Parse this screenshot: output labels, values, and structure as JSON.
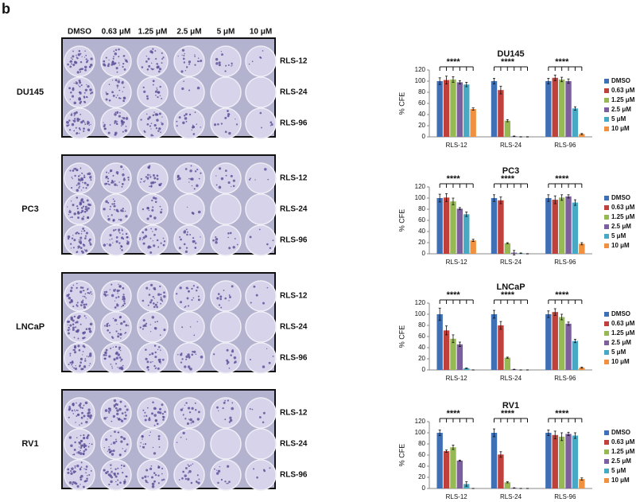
{
  "panel_label": "b",
  "plates": {
    "column_headers": [
      "DMSO",
      "0.63 μM",
      "1.25 μM",
      "2.5 μM",
      "5 μM",
      "10 μM"
    ],
    "groups": [
      {
        "name": "DU145",
        "rows": [
          "RLS-12",
          "RLS-24",
          "RLS-96"
        ]
      },
      {
        "name": "PC3",
        "rows": [
          "RLS-12",
          "RLS-24",
          "RLS-96"
        ]
      },
      {
        "name": "LNCaP",
        "rows": [
          "RLS-12",
          "RLS-24",
          "RLS-96"
        ]
      },
      {
        "name": "RV1",
        "rows": [
          "RLS-12",
          "RLS-24",
          "RLS-96"
        ]
      }
    ]
  },
  "chart_data": [
    {
      "type": "bar",
      "title": "DU145",
      "y_label": "% CFE",
      "categories": [
        "RLS-12",
        "RLS-24",
        "RLS-96"
      ],
      "ylim": [
        0,
        120
      ],
      "yticks": [
        0,
        20,
        40,
        60,
        80,
        100,
        120
      ],
      "annotations": [
        "****",
        "****",
        "****"
      ],
      "series": [
        {
          "name": "DMSO",
          "color": "#3f6fb5",
          "values": [
            100,
            100,
            100
          ],
          "errors": [
            6,
            5,
            5
          ]
        },
        {
          "name": "0.63 μM",
          "color": "#c0403c",
          "values": [
            102,
            84,
            106
          ],
          "errors": [
            7,
            7,
            5
          ]
        },
        {
          "name": "1.25 μM",
          "color": "#97b954",
          "values": [
            103,
            29,
            103
          ],
          "errors": [
            5,
            2,
            4
          ]
        },
        {
          "name": "2.5 μM",
          "color": "#7d5fa0",
          "values": [
            98,
            1,
            100
          ],
          "errors": [
            3,
            0.5,
            4
          ]
        },
        {
          "name": "5 μM",
          "color": "#47a9c4",
          "values": [
            94,
            0,
            51
          ],
          "errors": [
            4,
            0.3,
            3
          ]
        },
        {
          "name": "10 μM",
          "color": "#f1913f",
          "values": [
            50,
            0,
            5
          ],
          "errors": [
            2,
            0.3,
            1
          ]
        }
      ]
    },
    {
      "type": "bar",
      "title": "PC3",
      "y_label": "% CFE",
      "categories": [
        "RLS-12",
        "RLS-24",
        "RLS-96"
      ],
      "ylim": [
        0,
        120
      ],
      "yticks": [
        0,
        20,
        40,
        60,
        80,
        100,
        120
      ],
      "annotations": [
        "****",
        "****",
        "****"
      ],
      "series": [
        {
          "name": "DMSO",
          "color": "#3f6fb5",
          "values": [
            100,
            100,
            100
          ],
          "errors": [
            7,
            6,
            6
          ]
        },
        {
          "name": "0.63 μM",
          "color": "#c0403c",
          "values": [
            101,
            96,
            97
          ],
          "errors": [
            7,
            6,
            7
          ]
        },
        {
          "name": "1.25 μM",
          "color": "#97b954",
          "values": [
            94,
            19,
            101
          ],
          "errors": [
            6,
            1,
            5
          ]
        },
        {
          "name": "2.5 μM",
          "color": "#7d5fa0",
          "values": [
            81,
            2,
            103
          ],
          "errors": [
            2,
            4,
            3
          ]
        },
        {
          "name": "5 μM",
          "color": "#47a9c4",
          "values": [
            71,
            1,
            92
          ],
          "errors": [
            4,
            0.5,
            5
          ]
        },
        {
          "name": "10 μM",
          "color": "#f1913f",
          "values": [
            24,
            0,
            18
          ],
          "errors": [
            2,
            0.3,
            2
          ]
        }
      ]
    },
    {
      "type": "bar",
      "title": "LNCaP",
      "y_label": "% CFE",
      "categories": [
        "RLS-12",
        "RLS-24",
        "RLS-96"
      ],
      "ylim": [
        0,
        120
      ],
      "yticks": [
        0,
        20,
        40,
        60,
        80,
        100,
        120
      ],
      "annotations": [
        "****",
        "****",
        "****"
      ],
      "series": [
        {
          "name": "DMSO",
          "color": "#3f6fb5",
          "values": [
            100,
            100,
            100
          ],
          "errors": [
            11,
            7,
            6
          ]
        },
        {
          "name": "0.63 μM",
          "color": "#c0403c",
          "values": [
            71,
            80,
            104
          ],
          "errors": [
            8,
            7,
            6
          ]
        },
        {
          "name": "1.25 μM",
          "color": "#97b954",
          "values": [
            56,
            22,
            95
          ],
          "errors": [
            7,
            1,
            5
          ]
        },
        {
          "name": "2.5 μM",
          "color": "#7d5fa0",
          "values": [
            46,
            1,
            83
          ],
          "errors": [
            4,
            0.3,
            3
          ]
        },
        {
          "name": "5 μM",
          "color": "#47a9c4",
          "values": [
            3,
            0,
            52
          ],
          "errors": [
            0.5,
            0.2,
            3
          ]
        },
        {
          "name": "10 μM",
          "color": "#f1913f",
          "values": [
            0,
            0,
            4
          ],
          "errors": [
            0.2,
            0.2,
            1
          ]
        }
      ]
    },
    {
      "type": "bar",
      "title": "RV1",
      "y_label": "% CFE",
      "categories": [
        "RLS-12",
        "RLS-24",
        "RLS-96"
      ],
      "ylim": [
        0,
        120
      ],
      "yticks": [
        0,
        20,
        40,
        60,
        80,
        100,
        120
      ],
      "annotations": [
        "****",
        "****",
        "****"
      ],
      "series": [
        {
          "name": "DMSO",
          "color": "#3f6fb5",
          "values": [
            100,
            100,
            100
          ],
          "errors": [
            5,
            7,
            5
          ]
        },
        {
          "name": "0.63 μM",
          "color": "#c0403c",
          "values": [
            67,
            61,
            96
          ],
          "errors": [
            2,
            5,
            7
          ]
        },
        {
          "name": "1.25 μM",
          "color": "#97b954",
          "values": [
            74,
            11,
            93
          ],
          "errors": [
            4,
            1,
            7
          ]
        },
        {
          "name": "2.5 μM",
          "color": "#7d5fa0",
          "values": [
            50,
            1,
            98
          ],
          "errors": [
            1,
            0.3,
            3
          ]
        },
        {
          "name": "5 μM",
          "color": "#47a9c4",
          "values": [
            8,
            0,
            95
          ],
          "errors": [
            4,
            0.2,
            5
          ]
        },
        {
          "name": "10 μM",
          "color": "#f1913f",
          "values": [
            0,
            0,
            17
          ],
          "errors": [
            0.2,
            0.2,
            2
          ]
        }
      ]
    }
  ]
}
